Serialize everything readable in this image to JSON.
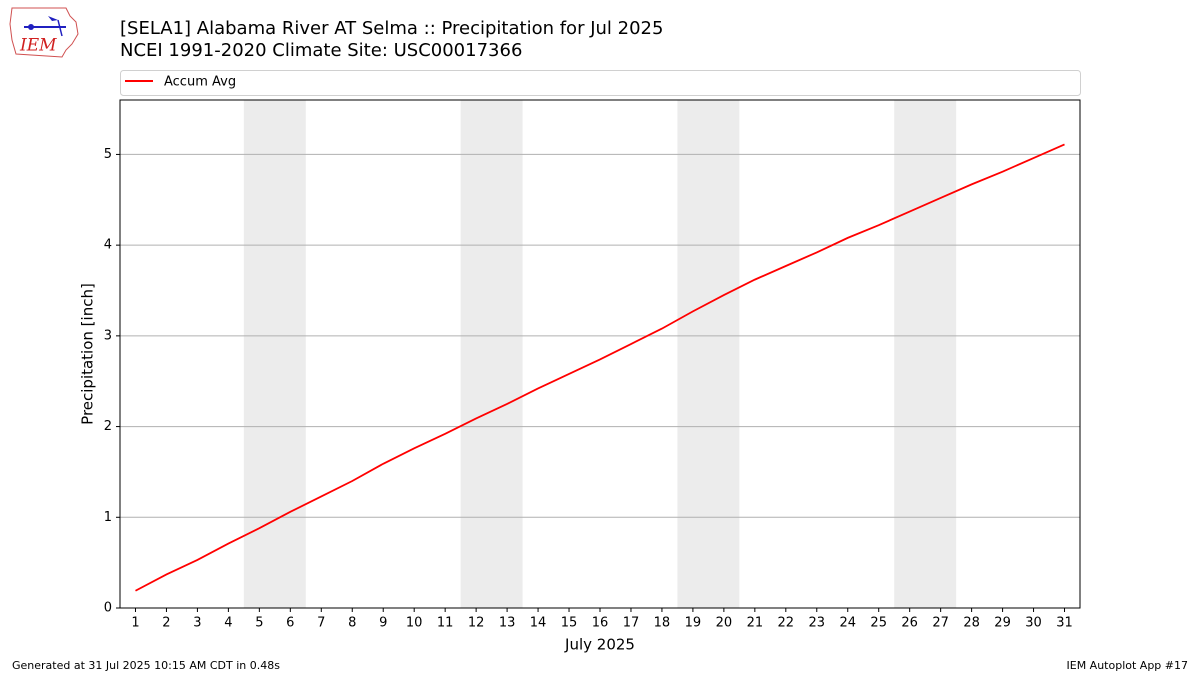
{
  "logo_text": "IEM",
  "footer": {
    "left": "Generated at 31 Jul 2025 10:15 AM CDT in 0.48s",
    "right": "IEM Autoplot App #17"
  },
  "chart_data": {
    "type": "line",
    "title": "[SELA1] Alabama River  AT Selma :: Precipitation for Jul 2025",
    "subtitle": "NCEI 1991-2020 Climate Site: USC00017366",
    "x_label": "July 2025",
    "y_label": "Precipitation [inch]",
    "x": [
      1,
      2,
      3,
      4,
      5,
      6,
      7,
      8,
      9,
      10,
      11,
      12,
      13,
      14,
      15,
      16,
      17,
      18,
      19,
      20,
      21,
      22,
      23,
      24,
      25,
      26,
      27,
      28,
      29,
      30,
      31
    ],
    "series": [
      {
        "name": "Accum Avg",
        "color": "#ff0000",
        "values": [
          0.19,
          0.37,
          0.53,
          0.71,
          0.88,
          1.06,
          1.23,
          1.4,
          1.59,
          1.76,
          1.92,
          2.09,
          2.25,
          2.42,
          2.58,
          2.74,
          2.91,
          3.08,
          3.27,
          3.45,
          3.62,
          3.77,
          3.92,
          4.08,
          4.22,
          4.37,
          4.52,
          4.67,
          4.81,
          4.96,
          5.11
        ]
      }
    ],
    "shaded_spans": [
      [
        4.5,
        6.5
      ],
      [
        11.5,
        13.5
      ],
      [
        18.5,
        20.5
      ],
      [
        25.5,
        27.5
      ]
    ],
    "shade_color": "#ececec",
    "xlim": [
      0.5,
      31.5
    ],
    "xticks": [
      1,
      2,
      3,
      4,
      5,
      6,
      7,
      8,
      9,
      10,
      11,
      12,
      13,
      14,
      15,
      16,
      17,
      18,
      19,
      20,
      21,
      22,
      23,
      24,
      25,
      26,
      27,
      28,
      29,
      30,
      31
    ],
    "ylim": [
      0,
      5.6
    ],
    "yticks": [
      0,
      1,
      2,
      3,
      4,
      5
    ],
    "grid": true,
    "legend": "top"
  }
}
